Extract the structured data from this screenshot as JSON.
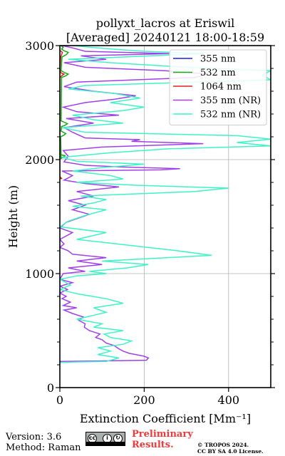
{
  "chart_data": {
    "type": "line",
    "title_line1": "pollyxt_lacros at Eriswil",
    "title_line2": "[Averaged] 20240121 18:00-18:59",
    "xlabel": "Extinction Coefficient [Mm⁻¹]",
    "ylabel": "Height (m)",
    "xlim": [
      0,
      500
    ],
    "ylim": [
      0,
      3000
    ],
    "xticks": [
      0,
      200,
      400
    ],
    "yticks": [
      0,
      1000,
      2000,
      3000
    ],
    "grid": true,
    "legend_position": "top-right",
    "series": [
      {
        "name": "355 nm",
        "color": "#1f1fe0",
        "points": []
      },
      {
        "name": "532 nm",
        "color": "#18a818",
        "points": [
          [
            0,
            2050
          ],
          [
            5,
            2040
          ],
          [
            12,
            2035
          ],
          [
            8,
            2020
          ],
          [
            3,
            2010
          ],
          [
            2,
            2200
          ],
          [
            10,
            2215
          ],
          [
            14,
            2228
          ],
          [
            8,
            2240
          ],
          [
            3,
            2250
          ],
          [
            4,
            2290
          ],
          [
            12,
            2300
          ],
          [
            18,
            2315
          ],
          [
            10,
            2328
          ],
          [
            3,
            2340
          ],
          [
            4,
            2720
          ],
          [
            14,
            2735
          ],
          [
            20,
            2750
          ],
          [
            10,
            2765
          ],
          [
            3,
            2780
          ],
          [
            5,
            2900
          ],
          [
            15,
            2920
          ],
          [
            20,
            2940
          ],
          [
            10,
            2955
          ],
          [
            4,
            2970
          ],
          [
            8,
            2985
          ],
          [
            3,
            3000
          ]
        ]
      },
      {
        "name": "1064 nm",
        "color": "#e02020",
        "points": [
          [
            0,
            1830
          ],
          [
            4,
            1835
          ],
          [
            0,
            1850
          ],
          [
            0,
            2720
          ],
          [
            6,
            2740
          ],
          [
            10,
            2750
          ],
          [
            3,
            2760
          ],
          [
            0,
            2780
          ],
          [
            2,
            2900
          ],
          [
            6,
            2940
          ],
          [
            0,
            2960
          ]
        ]
      },
      {
        "name": "355 nm (NR)",
        "color": "#a040e8",
        "points": [
          [
            0,
            230
          ],
          [
            120,
            235
          ],
          [
            205,
            240
          ],
          [
            210,
            260
          ],
          [
            200,
            275
          ],
          [
            180,
            290
          ],
          [
            165,
            300
          ],
          [
            150,
            320
          ],
          [
            140,
            340
          ],
          [
            128,
            370
          ],
          [
            110,
            390
          ],
          [
            100,
            420
          ],
          [
            85,
            440
          ],
          [
            95,
            470
          ],
          [
            70,
            500
          ],
          [
            58,
            530
          ],
          [
            60,
            560
          ],
          [
            45,
            590
          ],
          [
            55,
            620
          ],
          [
            30,
            650
          ],
          [
            10,
            680
          ],
          [
            40,
            700
          ],
          [
            8,
            720
          ],
          [
            25,
            750
          ],
          [
            5,
            780
          ],
          [
            15,
            800
          ],
          [
            0,
            830
          ],
          [
            18,
            860
          ],
          [
            0,
            890
          ],
          [
            30,
            920
          ],
          [
            0,
            950
          ],
          [
            8,
            1000
          ],
          [
            60,
            1020
          ],
          [
            20,
            1050
          ],
          [
            100,
            1080
          ],
          [
            40,
            1110
          ],
          [
            110,
            1140
          ],
          [
            30,
            1170
          ],
          [
            20,
            1200
          ],
          [
            0,
            1230
          ],
          [
            10,
            1260
          ],
          [
            0,
            1300
          ],
          [
            30,
            1360
          ],
          [
            0,
            1400
          ],
          [
            15,
            1450
          ],
          [
            70,
            1520
          ],
          [
            30,
            1560
          ],
          [
            60,
            1600
          ],
          [
            20,
            1640
          ],
          [
            80,
            1680
          ],
          [
            40,
            1720
          ],
          [
            140,
            1760
          ],
          [
            60,
            1790
          ],
          [
            10,
            1820
          ],
          [
            30,
            1860
          ],
          [
            5,
            1900
          ],
          [
            240,
            1910
          ],
          [
            285,
            1920
          ],
          [
            150,
            1935
          ],
          [
            60,
            1950
          ],
          [
            10,
            1980
          ],
          [
            20,
            2030
          ],
          [
            8,
            2080
          ],
          [
            100,
            2110
          ],
          [
            340,
            2140
          ],
          [
            170,
            2160
          ],
          [
            190,
            2175
          ],
          [
            60,
            2190
          ],
          [
            30,
            2240
          ],
          [
            10,
            2280
          ],
          [
            80,
            2320
          ],
          [
            15,
            2360
          ],
          [
            140,
            2390
          ],
          [
            40,
            2420
          ],
          [
            8,
            2460
          ],
          [
            60,
            2500
          ],
          [
            130,
            2530
          ],
          [
            180,
            2560
          ],
          [
            80,
            2600
          ],
          [
            10,
            2640
          ],
          [
            40,
            2680
          ],
          [
            320,
            2720
          ],
          [
            350,
            2750
          ],
          [
            250,
            2780
          ],
          [
            60,
            2810
          ],
          [
            10,
            2850
          ],
          [
            110,
            2880
          ],
          [
            50,
            2910
          ],
          [
            260,
            2930
          ],
          [
            60,
            2950
          ],
          [
            30,
            2980
          ],
          [
            5,
            3000
          ]
        ]
      },
      {
        "name": "532 nm (NR)",
        "color": "#3ff2c8",
        "points": [
          [
            0,
            220
          ],
          [
            40,
            225
          ],
          [
            110,
            230
          ],
          [
            140,
            260
          ],
          [
            90,
            290
          ],
          [
            120,
            320
          ],
          [
            90,
            350
          ],
          [
            150,
            380
          ],
          [
            170,
            410
          ],
          [
            120,
            440
          ],
          [
            105,
            470
          ],
          [
            150,
            500
          ],
          [
            80,
            530
          ],
          [
            100,
            560
          ],
          [
            40,
            600
          ],
          [
            75,
            630
          ],
          [
            110,
            660
          ],
          [
            80,
            700
          ],
          [
            150,
            740
          ],
          [
            110,
            780
          ],
          [
            45,
            820
          ],
          [
            0,
            860
          ],
          [
            25,
            900
          ],
          [
            0,
            950
          ],
          [
            40,
            980
          ],
          [
            110,
            1000
          ],
          [
            70,
            1020
          ],
          [
            160,
            1050
          ],
          [
            210,
            1080
          ],
          [
            100,
            1110
          ],
          [
            360,
            1160
          ],
          [
            280,
            1200
          ],
          [
            160,
            1250
          ],
          [
            40,
            1300
          ],
          [
            110,
            1360
          ],
          [
            0,
            1410
          ],
          [
            20,
            1460
          ],
          [
            60,
            1510
          ],
          [
            110,
            1560
          ],
          [
            30,
            1590
          ],
          [
            80,
            1620
          ],
          [
            110,
            1650
          ],
          [
            50,
            1680
          ],
          [
            320,
            1720
          ],
          [
            400,
            1750
          ],
          [
            180,
            1775
          ],
          [
            40,
            1800
          ],
          [
            150,
            1830
          ],
          [
            120,
            1860
          ],
          [
            30,
            1900
          ],
          [
            100,
            1930
          ],
          [
            200,
            1960
          ],
          [
            40,
            1985
          ],
          [
            5,
            2020
          ],
          [
            120,
            2060
          ],
          [
            260,
            2095
          ],
          [
            500,
            2120
          ],
          [
            420,
            2150
          ],
          [
            500,
            2180
          ],
          [
            420,
            2210
          ],
          [
            60,
            2240
          ],
          [
            5,
            2280
          ],
          [
            150,
            2320
          ],
          [
            80,
            2350
          ],
          [
            30,
            2390
          ],
          [
            150,
            2430
          ],
          [
            200,
            2460
          ],
          [
            120,
            2500
          ],
          [
            190,
            2540
          ],
          [
            130,
            2580
          ],
          [
            20,
            2620
          ],
          [
            60,
            2650
          ],
          [
            500,
            2700
          ],
          [
            480,
            2740
          ],
          [
            500,
            2780
          ],
          [
            300,
            2810
          ],
          [
            120,
            2850
          ],
          [
            20,
            2880
          ],
          [
            150,
            2900
          ],
          [
            340,
            2930
          ],
          [
            200,
            2950
          ],
          [
            120,
            2970
          ],
          [
            30,
            3000
          ]
        ]
      }
    ]
  },
  "footer": {
    "version": "Version: 3.6",
    "method": "Method: Raman",
    "preliminary_line1": "Preliminary",
    "preliminary_line2": "Results.",
    "copyright_line1": "© TROPOS 2024.",
    "copyright_line2": "CC BY SA 4.0 License."
  }
}
